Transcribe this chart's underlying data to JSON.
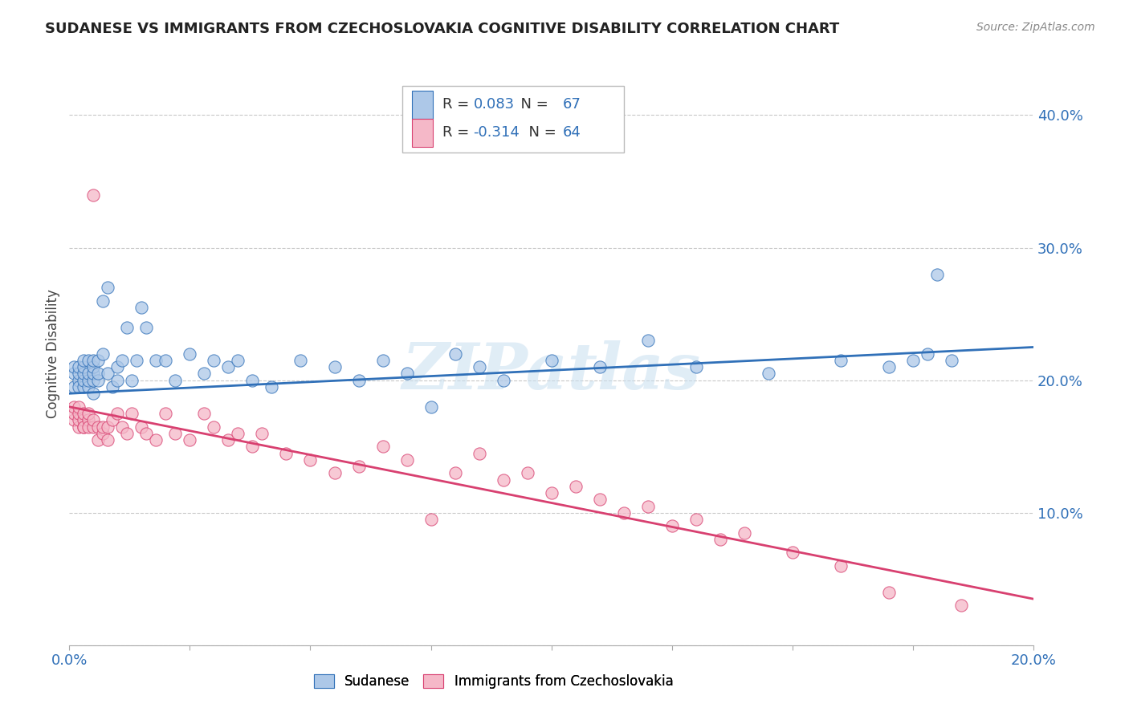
{
  "title": "SUDANESE VS IMMIGRANTS FROM CZECHOSLOVAKIA COGNITIVE DISABILITY CORRELATION CHART",
  "source": "Source: ZipAtlas.com",
  "ylabel": "Cognitive Disability",
  "xlim": [
    0.0,
    0.2
  ],
  "ylim": [
    0.0,
    0.44
  ],
  "series1_color": "#adc8e8",
  "series2_color": "#f5b8c8",
  "line1_color": "#3070b8",
  "line2_color": "#d84070",
  "R1": 0.083,
  "N1": 67,
  "R2": -0.314,
  "N2": 64,
  "legend1_label": "Sudanese",
  "legend2_label": "Immigrants from Czechoslovakia",
  "watermark": "ZIPatlas",
  "line1_x0": 0.0,
  "line1_y0": 0.19,
  "line1_x1": 0.2,
  "line1_y1": 0.225,
  "line2_x0": 0.0,
  "line2_y0": 0.18,
  "line2_x1": 0.2,
  "line2_y1": 0.035,
  "sudanese_x": [
    0.001,
    0.001,
    0.001,
    0.002,
    0.002,
    0.002,
    0.002,
    0.003,
    0.003,
    0.003,
    0.003,
    0.003,
    0.004,
    0.004,
    0.004,
    0.004,
    0.005,
    0.005,
    0.005,
    0.005,
    0.005,
    0.006,
    0.006,
    0.006,
    0.007,
    0.007,
    0.008,
    0.008,
    0.009,
    0.01,
    0.01,
    0.011,
    0.012,
    0.013,
    0.014,
    0.015,
    0.016,
    0.018,
    0.02,
    0.022,
    0.025,
    0.028,
    0.03,
    0.033,
    0.035,
    0.038,
    0.042,
    0.048,
    0.055,
    0.06,
    0.065,
    0.07,
    0.075,
    0.08,
    0.085,
    0.09,
    0.1,
    0.11,
    0.12,
    0.13,
    0.145,
    0.16,
    0.17,
    0.175,
    0.178,
    0.18,
    0.183
  ],
  "sudanese_y": [
    0.195,
    0.205,
    0.21,
    0.2,
    0.195,
    0.205,
    0.21,
    0.195,
    0.2,
    0.205,
    0.21,
    0.215,
    0.195,
    0.2,
    0.205,
    0.215,
    0.19,
    0.2,
    0.205,
    0.21,
    0.215,
    0.2,
    0.205,
    0.215,
    0.26,
    0.22,
    0.205,
    0.27,
    0.195,
    0.2,
    0.21,
    0.215,
    0.24,
    0.2,
    0.215,
    0.255,
    0.24,
    0.215,
    0.215,
    0.2,
    0.22,
    0.205,
    0.215,
    0.21,
    0.215,
    0.2,
    0.195,
    0.215,
    0.21,
    0.2,
    0.215,
    0.205,
    0.18,
    0.22,
    0.21,
    0.2,
    0.215,
    0.21,
    0.23,
    0.21,
    0.205,
    0.215,
    0.21,
    0.215,
    0.22,
    0.28,
    0.215
  ],
  "czech_x": [
    0.001,
    0.001,
    0.001,
    0.002,
    0.002,
    0.002,
    0.002,
    0.003,
    0.003,
    0.003,
    0.003,
    0.004,
    0.004,
    0.004,
    0.005,
    0.005,
    0.005,
    0.006,
    0.006,
    0.007,
    0.007,
    0.008,
    0.008,
    0.009,
    0.01,
    0.011,
    0.012,
    0.013,
    0.015,
    0.016,
    0.018,
    0.02,
    0.022,
    0.025,
    0.028,
    0.03,
    0.033,
    0.035,
    0.038,
    0.04,
    0.045,
    0.05,
    0.055,
    0.06,
    0.065,
    0.07,
    0.075,
    0.08,
    0.085,
    0.09,
    0.095,
    0.1,
    0.105,
    0.11,
    0.115,
    0.12,
    0.125,
    0.13,
    0.135,
    0.14,
    0.15,
    0.16,
    0.17,
    0.185
  ],
  "czech_y": [
    0.17,
    0.175,
    0.18,
    0.165,
    0.17,
    0.175,
    0.18,
    0.165,
    0.17,
    0.175,
    0.165,
    0.17,
    0.175,
    0.165,
    0.165,
    0.17,
    0.34,
    0.155,
    0.165,
    0.16,
    0.165,
    0.155,
    0.165,
    0.17,
    0.175,
    0.165,
    0.16,
    0.175,
    0.165,
    0.16,
    0.155,
    0.175,
    0.16,
    0.155,
    0.175,
    0.165,
    0.155,
    0.16,
    0.15,
    0.16,
    0.145,
    0.14,
    0.13,
    0.135,
    0.15,
    0.14,
    0.095,
    0.13,
    0.145,
    0.125,
    0.13,
    0.115,
    0.12,
    0.11,
    0.1,
    0.105,
    0.09,
    0.095,
    0.08,
    0.085,
    0.07,
    0.06,
    0.04,
    0.03
  ]
}
